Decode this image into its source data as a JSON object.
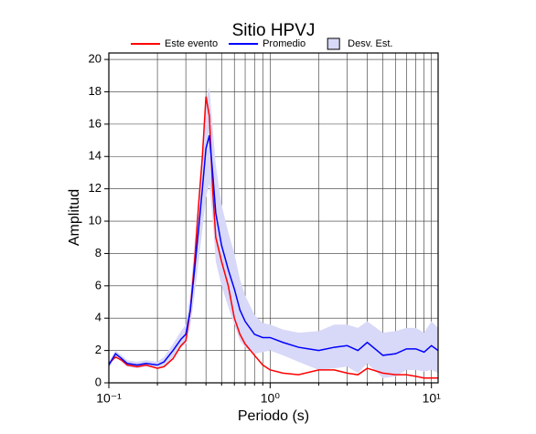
{
  "chart_data": {
    "type": "line",
    "title": "Sitio HPVJ",
    "x_label": "Periodo (s)",
    "y_label": "Amplitud",
    "log_x": true,
    "grid": true,
    "xlim": [
      0.1,
      11
    ],
    "ylim": [
      0,
      20.4
    ],
    "xticks": [
      {
        "value": 0.1,
        "label": "10⁻¹"
      },
      {
        "value": 1,
        "label": "10⁰"
      },
      {
        "value": 10,
        "label": "10¹"
      }
    ],
    "xminorticks": [
      0.2,
      0.3,
      0.4,
      0.5,
      0.6,
      0.7,
      0.8,
      0.9,
      2,
      3,
      4,
      5,
      6,
      7,
      8,
      9
    ],
    "yticks": [
      0,
      2,
      4,
      6,
      8,
      10,
      12,
      14,
      16,
      18,
      20
    ],
    "x": [
      0.1,
      0.11,
      0.12,
      0.13,
      0.15,
      0.17,
      0.2,
      0.22,
      0.25,
      0.28,
      0.3,
      0.32,
      0.34,
      0.36,
      0.38,
      0.4,
      0.42,
      0.44,
      0.46,
      0.5,
      0.55,
      0.6,
      0.65,
      0.7,
      0.8,
      0.9,
      1.0,
      1.2,
      1.5,
      2,
      2.5,
      3,
      3.5,
      4,
      5,
      6,
      7,
      8,
      9,
      10,
      11
    ],
    "series": [
      {
        "name": "Este evento",
        "color": "#ff0000",
        "values": [
          1.2,
          1.6,
          1.4,
          1.1,
          1.0,
          1.1,
          0.9,
          1.0,
          1.5,
          2.3,
          2.6,
          4.5,
          7.5,
          11,
          14,
          17.7,
          16.5,
          12,
          9,
          7.5,
          6,
          4,
          3,
          2.4,
          1.7,
          1.1,
          0.8,
          0.6,
          0.5,
          0.8,
          0.8,
          0.6,
          0.5,
          0.9,
          0.6,
          0.5,
          0.5,
          0.4,
          0.3,
          0.3,
          0.3
        ]
      },
      {
        "name": "Promedio",
        "color": "#0000ff",
        "values": [
          1.1,
          1.8,
          1.5,
          1.2,
          1.1,
          1.2,
          1.1,
          1.3,
          2.0,
          2.7,
          3.0,
          4.5,
          7,
          9.5,
          12,
          14.5,
          15.3,
          13,
          10.5,
          8.5,
          7,
          5.8,
          4.5,
          3.8,
          3.0,
          2.8,
          2.8,
          2.5,
          2.2,
          2.0,
          2.2,
          2.3,
          2.0,
          2.5,
          1.7,
          1.8,
          2.1,
          2.1,
          1.9,
          2.3,
          2.0
        ]
      },
      {
        "name": "Desv. Est.",
        "color": "#d8d8f8",
        "upper": [
          1.3,
          2.0,
          1.7,
          1.4,
          1.3,
          1.4,
          1.3,
          1.6,
          2.4,
          3.2,
          3.6,
          5.5,
          8.5,
          11.5,
          14.5,
          17.5,
          18.3,
          15.8,
          13.5,
          11,
          9.3,
          8,
          6.4,
          5.4,
          4.2,
          3.7,
          3.6,
          3.3,
          3.1,
          3.2,
          3.6,
          3.6,
          3.4,
          3.8,
          3.1,
          3.2,
          3.4,
          3.4,
          3.1,
          3.8,
          3.4
        ],
        "lower": [
          0.9,
          1.6,
          1.3,
          1.0,
          0.9,
          1.0,
          0.9,
          1.0,
          1.6,
          2.2,
          2.4,
          3.5,
          5.5,
          7.5,
          9.5,
          11.5,
          12.3,
          10.2,
          7.5,
          6,
          4.7,
          3.6,
          2.6,
          2.2,
          1.8,
          1.9,
          2.0,
          1.7,
          1.3,
          0.8,
          0.9,
          1.0,
          0.6,
          1.2,
          0.3,
          0.4,
          0.8,
          0.8,
          0.7,
          0.8,
          0.6
        ]
      }
    ]
  }
}
